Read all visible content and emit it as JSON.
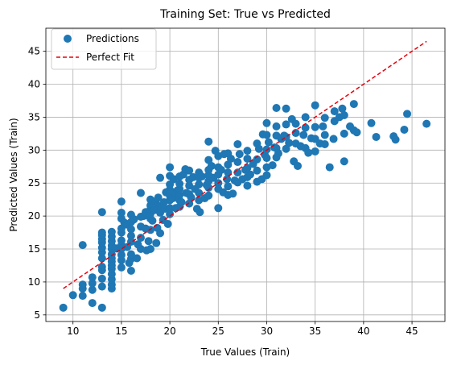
{
  "chart_data": {
    "type": "scatter",
    "title": "Training Set: True vs Predicted",
    "xlabel": "True Values (Train)",
    "ylabel": "Predicted Values (Train)",
    "xlim": [
      7.2,
      48.4
    ],
    "ylim": [
      4.0,
      48.5
    ],
    "xticks": [
      10,
      15,
      20,
      25,
      30,
      35,
      40,
      45
    ],
    "yticks": [
      5,
      10,
      15,
      20,
      25,
      30,
      35,
      40,
      45
    ],
    "grid": true,
    "legend_position": "top-left",
    "series": [
      {
        "name": "Predictions",
        "kind": "scatter",
        "color": "#1f77b4",
        "points": [
          [
            9.0,
            6.1
          ],
          [
            10.0,
            8.0
          ],
          [
            11.0,
            7.9
          ],
          [
            11.0,
            9.0
          ],
          [
            11.0,
            9.6
          ],
          [
            11.0,
            15.6
          ],
          [
            12.0,
            6.8
          ],
          [
            12.0,
            8.8
          ],
          [
            12.0,
            9.8
          ],
          [
            12.0,
            10.7
          ],
          [
            13.0,
            6.1
          ],
          [
            13.0,
            9.3
          ],
          [
            13.0,
            10.5
          ],
          [
            13.0,
            11.8
          ],
          [
            13.0,
            12.3
          ],
          [
            13.0,
            13.6
          ],
          [
            13.0,
            14.5
          ],
          [
            13.0,
            15.2
          ],
          [
            13.0,
            16.0
          ],
          [
            13.0,
            16.5
          ],
          [
            13.0,
            17.1
          ],
          [
            13.0,
            17.5
          ],
          [
            13.0,
            20.6
          ],
          [
            14.0,
            9.0
          ],
          [
            14.0,
            9.6
          ],
          [
            14.0,
            10.4
          ],
          [
            14.0,
            11.2
          ],
          [
            14.0,
            12.0
          ],
          [
            14.0,
            12.5
          ],
          [
            14.0,
            13.1
          ],
          [
            14.0,
            13.6
          ],
          [
            14.0,
            14.2
          ],
          [
            14.0,
            15.0
          ],
          [
            14.0,
            15.5
          ],
          [
            14.0,
            16.2
          ],
          [
            14.0,
            16.9
          ],
          [
            14.0,
            17.6
          ],
          [
            14.5,
            15.1
          ],
          [
            15.0,
            12.2
          ],
          [
            15.0,
            13.3
          ],
          [
            15.0,
            14.1
          ],
          [
            15.0,
            15.0
          ],
          [
            15.0,
            15.6
          ],
          [
            15.0,
            16.3
          ],
          [
            15.0,
            17.5
          ],
          [
            15.0,
            18.1
          ],
          [
            15.0,
            19.6
          ],
          [
            15.0,
            20.5
          ],
          [
            15.0,
            22.2
          ],
          [
            15.3,
            19.0
          ],
          [
            15.6,
            15.3
          ],
          [
            15.6,
            18.7
          ],
          [
            15.8,
            12.9
          ],
          [
            16.0,
            11.7
          ],
          [
            16.0,
            13.5
          ],
          [
            16.0,
            14.2
          ],
          [
            16.0,
            16.1
          ],
          [
            16.0,
            17.0
          ],
          [
            16.0,
            18.0
          ],
          [
            16.0,
            19.1
          ],
          [
            16.0,
            20.2
          ],
          [
            16.3,
            19.5
          ],
          [
            16.6,
            13.6
          ],
          [
            16.7,
            15.7
          ],
          [
            17.0,
            15.0
          ],
          [
            17.0,
            16.7
          ],
          [
            17.0,
            18.4
          ],
          [
            17.0,
            19.9
          ],
          [
            17.0,
            23.5
          ],
          [
            17.3,
            20.0
          ],
          [
            17.5,
            18.1
          ],
          [
            17.5,
            20.6
          ],
          [
            17.6,
            14.8
          ],
          [
            17.8,
            16.2
          ],
          [
            18.0,
            15.0
          ],
          [
            18.0,
            17.9
          ],
          [
            18.0,
            19.6
          ],
          [
            18.0,
            20.4
          ],
          [
            18.0,
            21.0
          ],
          [
            18.0,
            21.6
          ],
          [
            18.0,
            22.5
          ],
          [
            18.2,
            19.3
          ],
          [
            18.4,
            20.9
          ],
          [
            18.5,
            22.2
          ],
          [
            18.6,
            15.9
          ],
          [
            18.7,
            18.2
          ],
          [
            18.8,
            21.6
          ],
          [
            18.8,
            22.8
          ],
          [
            19.0,
            17.4
          ],
          [
            19.0,
            20.5
          ],
          [
            19.0,
            21.4
          ],
          [
            19.0,
            25.8
          ],
          [
            19.3,
            19.4
          ],
          [
            19.4,
            22.1
          ],
          [
            19.5,
            21.1
          ],
          [
            19.6,
            23.6
          ],
          [
            19.8,
            18.8
          ],
          [
            20.0,
            20.3
          ],
          [
            20.0,
            21.2
          ],
          [
            20.0,
            22.4
          ],
          [
            20.0,
            23.1
          ],
          [
            20.0,
            24.0
          ],
          [
            20.0,
            24.8
          ],
          [
            20.0,
            26.1
          ],
          [
            20.0,
            27.4
          ],
          [
            20.3,
            22.7
          ],
          [
            20.4,
            25.6
          ],
          [
            20.5,
            23.6
          ],
          [
            20.6,
            21.2
          ],
          [
            20.8,
            23.9
          ],
          [
            21.0,
            21.4
          ],
          [
            21.0,
            22.4
          ],
          [
            21.0,
            23.2
          ],
          [
            21.0,
            24.1
          ],
          [
            21.0,
            24.9
          ],
          [
            21.0,
            26.0
          ],
          [
            21.2,
            22.1
          ],
          [
            21.4,
            26.3
          ],
          [
            21.6,
            27.1
          ],
          [
            21.7,
            23.5
          ],
          [
            22.0,
            21.9
          ],
          [
            22.0,
            23.3
          ],
          [
            22.0,
            24.6
          ],
          [
            22.0,
            25.5
          ],
          [
            22.0,
            26.9
          ],
          [
            22.2,
            22.8
          ],
          [
            22.4,
            25.9
          ],
          [
            22.6,
            24.1
          ],
          [
            22.8,
            21.1
          ],
          [
            23.0,
            22.4
          ],
          [
            23.0,
            23.5
          ],
          [
            23.0,
            24.8
          ],
          [
            23.0,
            25.8
          ],
          [
            23.0,
            26.6
          ],
          [
            23.1,
            20.6
          ],
          [
            23.3,
            26.0
          ],
          [
            23.6,
            22.7
          ],
          [
            23.8,
            24.7
          ],
          [
            24.0,
            23.1
          ],
          [
            24.0,
            24.3
          ],
          [
            24.0,
            25.3
          ],
          [
            24.0,
            26.2
          ],
          [
            24.0,
            27.0
          ],
          [
            24.0,
            28.5
          ],
          [
            24.0,
            31.3
          ],
          [
            24.3,
            27.6
          ],
          [
            24.5,
            25.8
          ],
          [
            24.7,
            29.9
          ],
          [
            25.0,
            24.1
          ],
          [
            25.0,
            25.0
          ],
          [
            25.0,
            26.3
          ],
          [
            25.0,
            27.4
          ],
          [
            25.0,
            29.1
          ],
          [
            25.0,
            21.2
          ],
          [
            25.3,
            27.0
          ],
          [
            25.5,
            23.6
          ],
          [
            25.6,
            29.4
          ],
          [
            25.9,
            25.6
          ],
          [
            26.0,
            23.2
          ],
          [
            26.0,
            24.5
          ],
          [
            26.0,
            26.6
          ],
          [
            26.0,
            27.8
          ],
          [
            26.0,
            29.5
          ],
          [
            26.3,
            28.7
          ],
          [
            26.5,
            23.4
          ],
          [
            26.7,
            25.4
          ],
          [
            27.0,
            25.1
          ],
          [
            27.0,
            26.6
          ],
          [
            27.0,
            28.2
          ],
          [
            27.0,
            30.9
          ],
          [
            27.2,
            29.4
          ],
          [
            27.5,
            25.6
          ],
          [
            27.8,
            27.0
          ],
          [
            28.0,
            24.6
          ],
          [
            28.0,
            25.9
          ],
          [
            28.0,
            27.3
          ],
          [
            28.0,
            28.7
          ],
          [
            28.0,
            29.9
          ],
          [
            28.3,
            26.3
          ],
          [
            28.6,
            27.9
          ],
          [
            29.0,
            25.2
          ],
          [
            29.0,
            26.9
          ],
          [
            29.0,
            28.6
          ],
          [
            29.0,
            31.0
          ],
          [
            29.2,
            30.2
          ],
          [
            29.5,
            25.6
          ],
          [
            29.6,
            32.4
          ],
          [
            29.8,
            29.3
          ],
          [
            30.0,
            26.2
          ],
          [
            30.0,
            27.4
          ],
          [
            30.0,
            28.8
          ],
          [
            30.0,
            30.1
          ],
          [
            30.0,
            32.3
          ],
          [
            30.0,
            34.1
          ],
          [
            30.2,
            31.2
          ],
          [
            30.6,
            27.7
          ],
          [
            30.8,
            30.4
          ],
          [
            31.0,
            28.9
          ],
          [
            31.0,
            30.3
          ],
          [
            31.0,
            32.2
          ],
          [
            31.0,
            33.6
          ],
          [
            31.0,
            36.4
          ],
          [
            31.2,
            29.5
          ],
          [
            31.5,
            31.7
          ],
          [
            31.8,
            32.2
          ],
          [
            32.0,
            30.2
          ],
          [
            32.0,
            32.0
          ],
          [
            32.0,
            33.9
          ],
          [
            32.0,
            36.3
          ],
          [
            32.3,
            31.1
          ],
          [
            32.6,
            34.7
          ],
          [
            32.8,
            28.3
          ],
          [
            33.0,
            31.0
          ],
          [
            33.0,
            32.6
          ],
          [
            33.0,
            34.0
          ],
          [
            33.2,
            27.6
          ],
          [
            33.5,
            30.6
          ],
          [
            33.8,
            32.3
          ],
          [
            34.0,
            30.3
          ],
          [
            34.0,
            33.4
          ],
          [
            34.0,
            35.0
          ],
          [
            34.3,
            29.6
          ],
          [
            34.6,
            31.8
          ],
          [
            35.0,
            29.8
          ],
          [
            35.0,
            31.7
          ],
          [
            35.0,
            33.5
          ],
          [
            35.0,
            36.8
          ],
          [
            35.5,
            31.0
          ],
          [
            35.8,
            33.6
          ],
          [
            36.0,
            30.9
          ],
          [
            36.0,
            32.3
          ],
          [
            36.0,
            34.9
          ],
          [
            36.5,
            27.4
          ],
          [
            36.9,
            31.7
          ],
          [
            37.0,
            34.4
          ],
          [
            37.0,
            35.9
          ],
          [
            37.5,
            35.0
          ],
          [
            37.8,
            36.3
          ],
          [
            38.0,
            28.3
          ],
          [
            38.0,
            32.5
          ],
          [
            38.0,
            35.3
          ],
          [
            38.6,
            33.6
          ],
          [
            39.0,
            33.0
          ],
          [
            39.0,
            37.0
          ],
          [
            39.3,
            32.7
          ],
          [
            40.8,
            34.1
          ],
          [
            41.3,
            32.0
          ],
          [
            43.1,
            32.1
          ],
          [
            43.3,
            31.6
          ],
          [
            44.2,
            33.1
          ],
          [
            44.5,
            35.5
          ],
          [
            46.5,
            34.0
          ]
        ]
      },
      {
        "name": "Perfect Fit",
        "kind": "line",
        "style": "dashed",
        "color": "#e8000b",
        "points": [
          [
            9.0,
            9.0
          ],
          [
            46.5,
            46.5
          ]
        ]
      }
    ]
  }
}
